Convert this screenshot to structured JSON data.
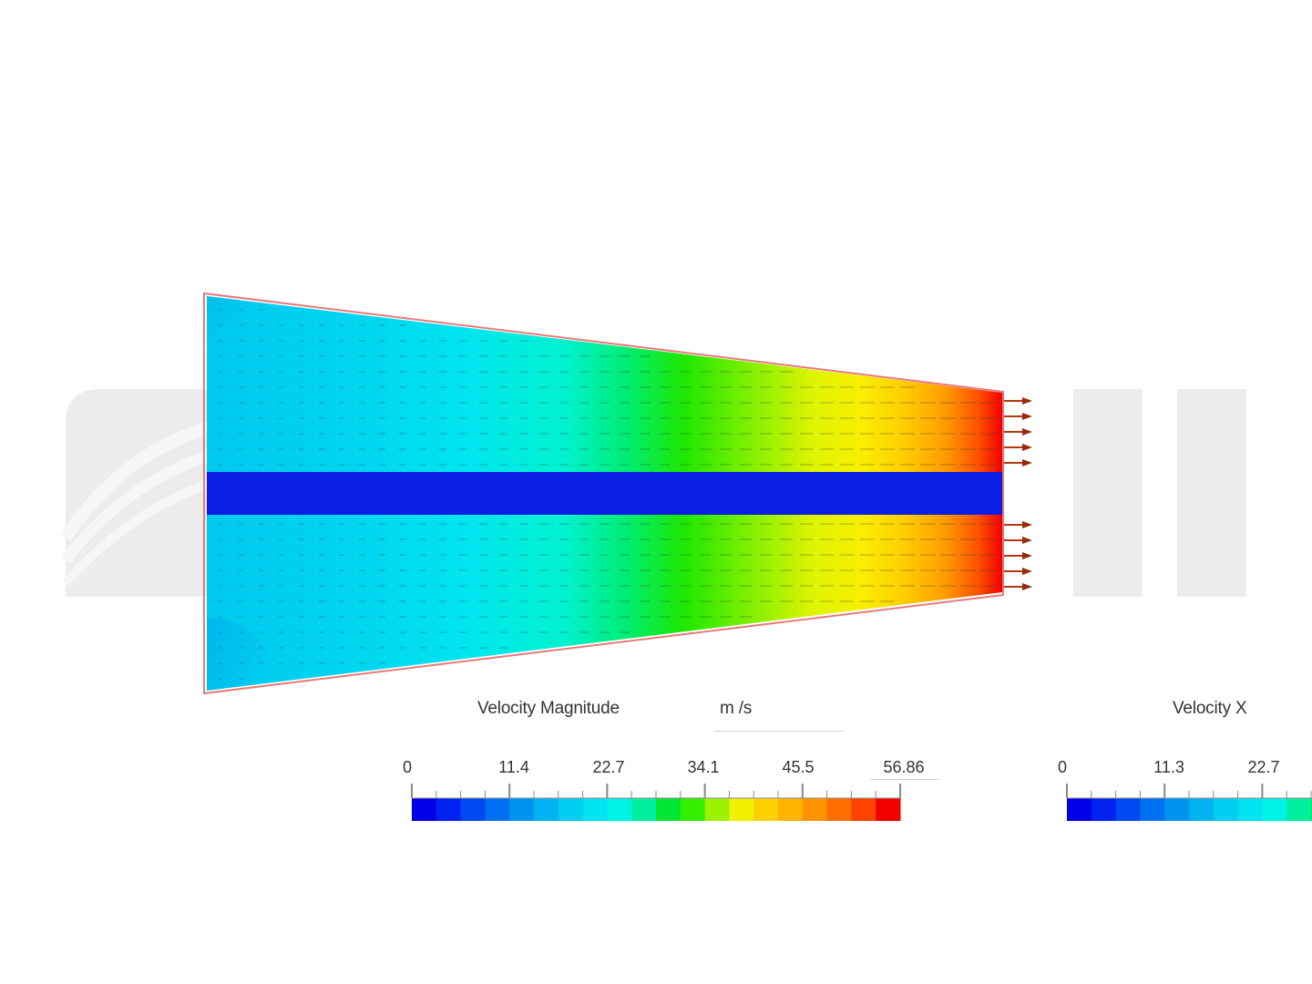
{
  "watermark": {
    "kind": "logo",
    "color": "#ebebeb"
  },
  "colors": {
    "outline": "#e87a7a",
    "magnitude_bands": [
      "#0000e8",
      "#0022f0",
      "#0048f2",
      "#0070f2",
      "#0094f2",
      "#00b2f0",
      "#00cdef",
      "#00e3f0",
      "#00f3e6",
      "#00f0a0",
      "#00e632",
      "#33ef00",
      "#9cf200",
      "#f0f000",
      "#ffd000",
      "#ffb400",
      "#ff9400",
      "#ff6e00",
      "#ff4400",
      "#f20000"
    ],
    "velx_bands": [
      "#0000e8",
      "#0022f0",
      "#0048f2",
      "#0070f2",
      "#0094f2",
      "#00b2f0",
      "#00cdef",
      "#00e3f0",
      "#00f3e6",
      "#00f0b4"
    ]
  },
  "legend_magnitude": {
    "title": "Velocity Magnitude",
    "unit": "m /s",
    "ticks": [
      "0",
      "11.4",
      "22.7",
      "34.1",
      "45.5",
      "56.86"
    ]
  },
  "legend_velx": {
    "title": "Velocity X",
    "ticks": [
      "0",
      "11.3",
      "22.7"
    ]
  }
}
